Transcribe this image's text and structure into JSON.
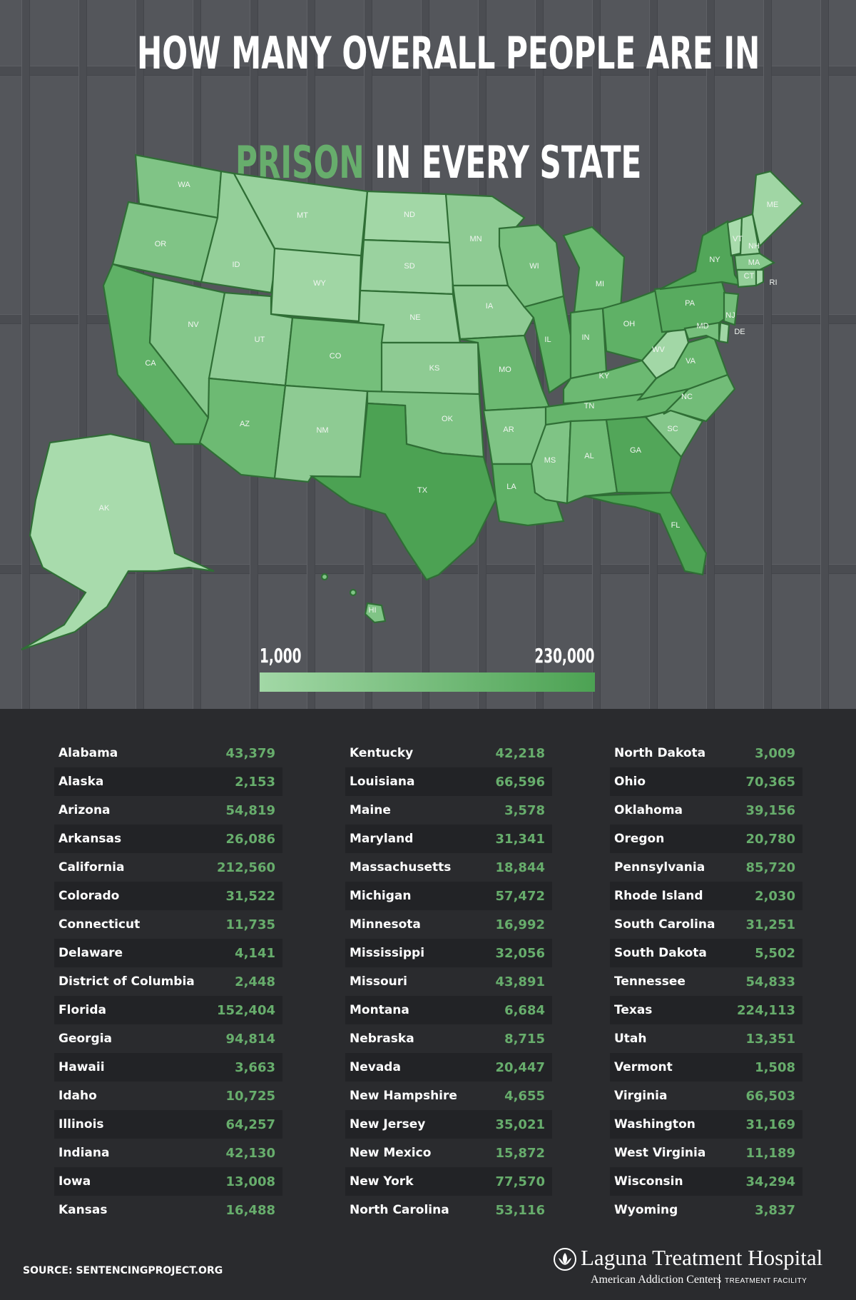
{
  "title": {
    "line1": "HOW MANY OVERALL PEOPLE ARE IN",
    "highlight": "PRISON",
    "line2_rest": " IN EVERY STATE"
  },
  "legend": {
    "min_label": "1,000",
    "max_label": "230,000",
    "min_value": 1000,
    "max_value": 230000,
    "color_min": "#a2d8a6",
    "color_max": "#4ca253"
  },
  "map_labels": [
    "WA",
    "OR",
    "CA",
    "ID",
    "NV",
    "MT",
    "WY",
    "UT",
    "AZ",
    "CO",
    "NM",
    "ND",
    "SD",
    "NE",
    "KS",
    "OK",
    "TX",
    "MN",
    "IA",
    "MO",
    "AR",
    "LA",
    "WI",
    "IL",
    "MI",
    "IN",
    "OH",
    "KY",
    "TN",
    "MS",
    "AL",
    "GA",
    "FL",
    "SC",
    "NC",
    "VA",
    "WV",
    "PA",
    "NY",
    "VT",
    "NH",
    "ME",
    "MA",
    "CT",
    "RI",
    "NJ",
    "DE",
    "MD",
    "AK",
    "HI"
  ],
  "table": {
    "columns": [
      [
        {
          "state": "Alabama",
          "value": "43,379"
        },
        {
          "state": "Alaska",
          "value": "2,153"
        },
        {
          "state": "Arizona",
          "value": "54,819"
        },
        {
          "state": "Arkansas",
          "value": "26,086"
        },
        {
          "state": "California",
          "value": "212,560"
        },
        {
          "state": "Colorado",
          "value": "31,522"
        },
        {
          "state": "Connecticut",
          "value": "11,735"
        },
        {
          "state": "Delaware",
          "value": "4,141"
        },
        {
          "state": "District of Columbia",
          "value": "2,448"
        },
        {
          "state": "Florida",
          "value": "152,404"
        },
        {
          "state": "Georgia",
          "value": "94,814"
        },
        {
          "state": "Hawaii",
          "value": "3,663"
        },
        {
          "state": "Idaho",
          "value": "10,725"
        },
        {
          "state": "Illinois",
          "value": "64,257"
        },
        {
          "state": "Indiana",
          "value": "42,130"
        },
        {
          "state": "Iowa",
          "value": "13,008"
        },
        {
          "state": "Kansas",
          "value": "16,488"
        }
      ],
      [
        {
          "state": "Kentucky",
          "value": "42,218"
        },
        {
          "state": "Louisiana",
          "value": "66,596"
        },
        {
          "state": "Maine",
          "value": "3,578"
        },
        {
          "state": "Maryland",
          "value": "31,341"
        },
        {
          "state": "Massachusetts",
          "value": "18,844"
        },
        {
          "state": "Michigan",
          "value": "57,472"
        },
        {
          "state": "Minnesota",
          "value": "16,992"
        },
        {
          "state": "Mississippi",
          "value": "32,056"
        },
        {
          "state": "Missouri",
          "value": "43,891"
        },
        {
          "state": "Montana",
          "value": "6,684"
        },
        {
          "state": "Nebraska",
          "value": "8,715"
        },
        {
          "state": "Nevada",
          "value": "20,447"
        },
        {
          "state": "New Hampshire",
          "value": "4,655"
        },
        {
          "state": "New Jersey",
          "value": "35,021"
        },
        {
          "state": "New Mexico",
          "value": "15,872"
        },
        {
          "state": "New York",
          "value": "77,570"
        },
        {
          "state": "North Carolina",
          "value": "53,116"
        }
      ],
      [
        {
          "state": "North Dakota",
          "value": "3,009"
        },
        {
          "state": "Ohio",
          "value": "70,365"
        },
        {
          "state": "Oklahoma",
          "value": "39,156"
        },
        {
          "state": "Oregon",
          "value": "20,780"
        },
        {
          "state": "Pennsylvania",
          "value": "85,720"
        },
        {
          "state": "Rhode Island",
          "value": "2,030"
        },
        {
          "state": "South Carolina",
          "value": "31,251"
        },
        {
          "state": "South Dakota",
          "value": "5,502"
        },
        {
          "state": "Tennessee",
          "value": "54,833"
        },
        {
          "state": "Texas",
          "value": "224,113"
        },
        {
          "state": "Utah",
          "value": "13,351"
        },
        {
          "state": "Vermont",
          "value": "1,508"
        },
        {
          "state": "Virginia",
          "value": "66,503"
        },
        {
          "state": "Washington",
          "value": "31,169"
        },
        {
          "state": "West Virginia",
          "value": "11,189"
        },
        {
          "state": "Wisconsin",
          "value": "34,294"
        },
        {
          "state": "Wyoming",
          "value": "3,837"
        }
      ]
    ]
  },
  "source": "SOURCE: SENTENCINGPROJECT.ORG",
  "brand": {
    "name": "Laguna Treatment Hospital",
    "sub": "American Addiction Centers",
    "tag": "TREATMENT FACILITY"
  }
}
